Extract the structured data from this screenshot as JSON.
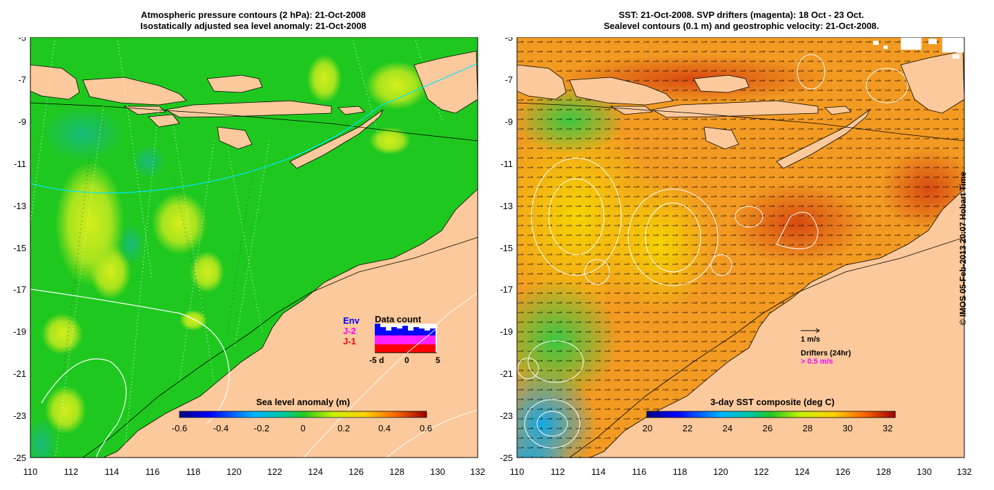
{
  "left_panel": {
    "title_line1": "Atmospheric pressure contours (2 hPa): 21-Oct-2008",
    "title_line2": "Isostatically adjusted sea level anomaly: 21-Oct-2008",
    "colorbar": {
      "label": "Sea level anomaly (m)",
      "ticks": [
        "-0.6",
        "-0.4",
        "-0.2",
        "0",
        "0.2",
        "0.4",
        "0.6"
      ]
    },
    "inset": {
      "title": "Data count",
      "legend": [
        "J-1",
        "J-2",
        "Env"
      ],
      "x_ticks": [
        "-5",
        "0",
        "5"
      ],
      "extra_label": "d"
    }
  },
  "right_panel": {
    "title_line1": "SST: 21-Oct-2008. SVP drifters (magenta): 18 Oct - 23 Oct.",
    "title_line2": "Sealevel contours (0.1 m) and geostrophic velocity: 21-Oct-2008.",
    "colorbar": {
      "label": "3-day SST composite (deg C)",
      "ticks": [
        "20",
        "22",
        "24",
        "26",
        "28",
        "30",
        "32"
      ]
    },
    "velocity_scale": "1 m/s",
    "drifter_title": "Drifters (24hr)",
    "drifter_scale": "> 0.5 m/s"
  },
  "axes": {
    "y_ticks": [
      "-5",
      "-7",
      "-9",
      "-11",
      "-13",
      "-15",
      "-17",
      "-19",
      "-21",
      "-23",
      "-25"
    ],
    "x_ticks": [
      "110",
      "112",
      "114",
      "116",
      "118",
      "120",
      "122",
      "124",
      "126",
      "128",
      "130",
      "132"
    ]
  },
  "credit": "© IMOS 05-Feb-2013 20:07 Hobart Time",
  "colors": {
    "land": "#fbc99b",
    "sla_base": "#1fc81f",
    "sst_base": "#f29a22",
    "drifter": "#ff00ff"
  }
}
